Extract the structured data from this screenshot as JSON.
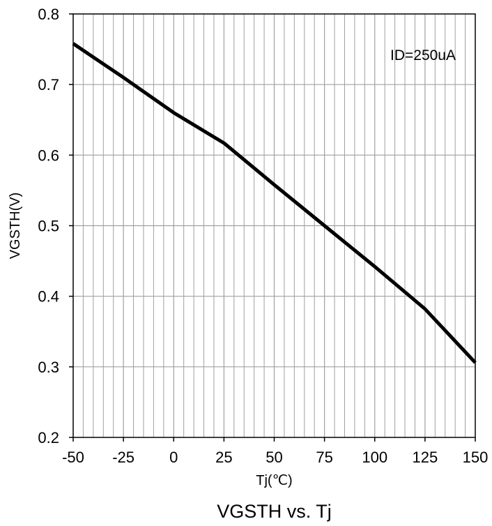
{
  "chart_data": {
    "type": "line",
    "title": "VGSTH vs. Tj",
    "xlabel": "Tj(℃)",
    "ylabel": "VGSTH(V)",
    "xlim": [
      -50,
      150
    ],
    "ylim": [
      0.2,
      0.8
    ],
    "x_ticks": [
      -50,
      -25,
      0,
      25,
      50,
      75,
      100,
      125,
      150
    ],
    "x_tick_labels": [
      "-50",
      "-25",
      "0",
      "25",
      "50",
      "75",
      "100",
      "125",
      "150"
    ],
    "y_ticks": [
      0.2,
      0.3,
      0.4,
      0.5,
      0.6,
      0.7,
      0.8
    ],
    "y_tick_labels": [
      "0.2",
      "0.3",
      "0.4",
      "0.5",
      "0.6",
      "0.7",
      "0.8"
    ],
    "x_minor_step": 5,
    "grid": true,
    "annotation": "ID=250uA",
    "series": [
      {
        "x": [
          -50,
          -25,
          0,
          25,
          50,
          75,
          100,
          125,
          150
        ],
        "y": [
          0.758,
          0.71,
          0.66,
          0.617,
          0.558,
          0.5,
          0.442,
          0.382,
          0.306
        ]
      }
    ],
    "colors": {
      "line": "#000000",
      "grid": "#a0a0a0",
      "axis": "#000000"
    }
  }
}
